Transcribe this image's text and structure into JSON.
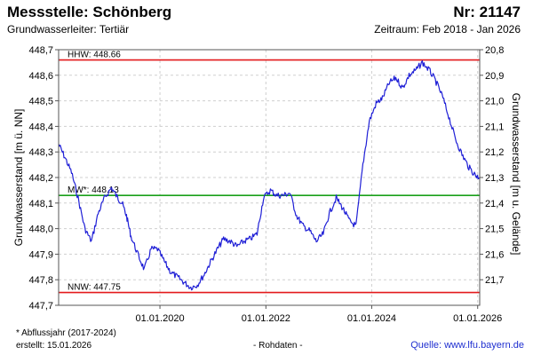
{
  "header": {
    "title": "Messstelle: Schönberg",
    "number": "Nr: 21147",
    "subtitle": "Grundwasserleiter: Tertiär",
    "period": "Zeitraum: Feb 2018 - Jan 2026"
  },
  "footer": {
    "footnote": "* Abflussjahr (2017-2024)",
    "created": "erstellt:  15.01.2026",
    "rawdata": "- Rohdaten -",
    "source": "Quelle: www.lfu.bayern.de"
  },
  "chart_data": {
    "type": "line",
    "xlabel": "",
    "ylabel": "Grundwasserstand [m ü. NN]",
    "ylabel_right": "Grundwasserstand [m u. Gelände]",
    "xlim": [
      "2018-02-01",
      "2026-01-15"
    ],
    "ylim": [
      447.7,
      448.7
    ],
    "ylim_right": [
      20.8,
      21.8
    ],
    "xticks": [
      {
        "date": "2020-01-01",
        "label": "01.01.2020"
      },
      {
        "date": "2022-01-01",
        "label": "01.01.2022"
      },
      {
        "date": "2024-01-01",
        "label": "01.01.2024"
      },
      {
        "date": "2026-01-01",
        "label": "01.01.2026"
      }
    ],
    "yticks": [
      "447,7",
      "447,8",
      "447,9",
      "448,0",
      "448,1",
      "448,2",
      "448,3",
      "448,4",
      "448,5",
      "448,6",
      "448,7"
    ],
    "yticks_right": [
      "20,8",
      "20,9",
      "21,0",
      "21,1",
      "21,2",
      "21,3",
      "21,4",
      "21,5",
      "21,6",
      "21,7"
    ],
    "grid": true,
    "reference_lines": [
      {
        "label": "HHW: 448.66",
        "value": 448.66,
        "color": "#e31a1c"
      },
      {
        "label": "MW*: 448.13",
        "value": 448.13,
        "color": "#1aa01a"
      },
      {
        "label": "NNW: 447.75",
        "value": 447.75,
        "color": "#e31a1c"
      }
    ],
    "series": [
      {
        "color": "#1f1fd6",
        "x": [
          "2018-02-01",
          "2018-03-15",
          "2018-05-01",
          "2018-06-15",
          "2018-08-01",
          "2018-09-15",
          "2018-11-01",
          "2018-12-15",
          "2019-02-01",
          "2019-03-15",
          "2019-04-15",
          "2019-05-15",
          "2019-06-15",
          "2019-08-01",
          "2019-09-15",
          "2019-11-01",
          "2019-12-15",
          "2020-02-01",
          "2020-03-15",
          "2020-05-01",
          "2020-06-15",
          "2020-08-01",
          "2020-09-15",
          "2020-11-01",
          "2020-12-15",
          "2021-02-01",
          "2021-03-15",
          "2021-05-01",
          "2021-06-15",
          "2021-08-01",
          "2021-09-15",
          "2021-11-01",
          "2021-12-15",
          "2022-02-01",
          "2022-03-15",
          "2022-05-01",
          "2022-06-15",
          "2022-08-01",
          "2022-09-15",
          "2022-11-01",
          "2022-12-15",
          "2023-02-01",
          "2023-03-15",
          "2023-05-01",
          "2023-06-15",
          "2023-08-01",
          "2023-09-15",
          "2023-11-01",
          "2023-12-15",
          "2024-02-01",
          "2024-03-15",
          "2024-05-01",
          "2024-06-15",
          "2024-08-01",
          "2024-09-15",
          "2024-11-01",
          "2024-12-15",
          "2025-02-01",
          "2025-03-15",
          "2025-05-01",
          "2025-06-15",
          "2025-08-01",
          "2025-09-15",
          "2025-11-01",
          "2025-12-15",
          "2026-01-10"
        ],
        "values": [
          448.33,
          448.28,
          448.22,
          448.12,
          448.0,
          447.95,
          448.06,
          448.12,
          448.16,
          448.12,
          448.1,
          448.05,
          447.97,
          447.9,
          447.84,
          447.92,
          447.92,
          447.87,
          447.83,
          447.81,
          447.79,
          447.77,
          447.78,
          447.82,
          447.87,
          447.92,
          447.96,
          447.95,
          447.93,
          447.95,
          447.96,
          447.98,
          448.12,
          448.15,
          448.13,
          448.13,
          448.14,
          448.05,
          448.01,
          447.99,
          447.95,
          447.98,
          448.06,
          448.12,
          448.08,
          448.03,
          448.01,
          448.25,
          448.42,
          448.49,
          448.51,
          448.57,
          448.59,
          448.55,
          448.6,
          448.62,
          448.65,
          448.62,
          448.58,
          448.52,
          448.44,
          448.35,
          448.29,
          448.24,
          448.21,
          448.2
        ]
      }
    ]
  }
}
